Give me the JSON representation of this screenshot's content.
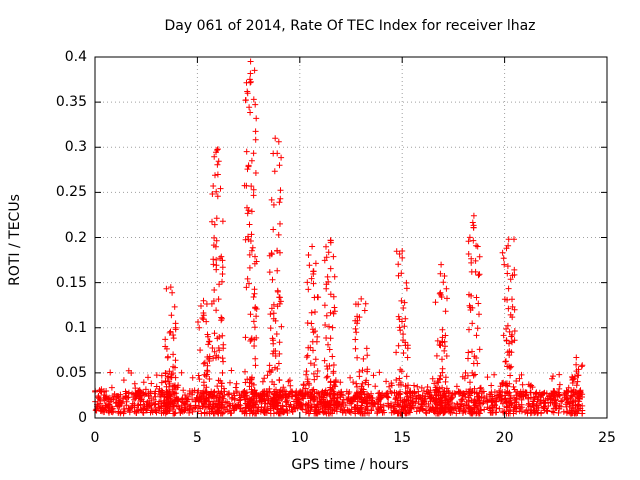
{
  "chart_data": {
    "type": "scatter",
    "title": "Day 061 of 2014, Rate Of TEC Index for receiver lhaz",
    "xlabel": "GPS time / hours",
    "ylabel": "ROTI / TECUs",
    "xlim": [
      0,
      25
    ],
    "ylim": [
      0,
      0.4
    ],
    "xticks": [
      "0",
      "5",
      "10",
      "15",
      "20",
      "25"
    ],
    "yticks": [
      "0",
      "0.05",
      "0.1",
      "0.15",
      "0.2",
      "0.25",
      "0.3",
      "0.35",
      "0.4"
    ],
    "grid": true,
    "marker": "+",
    "color": "#ff0000",
    "x_range_observed": [
      0,
      23.8
    ],
    "baseline_roti": [
      0.005,
      0.03
    ],
    "peaks": [
      {
        "x": 3.7,
        "y": 0.145
      },
      {
        "x": 5.3,
        "y": 0.13
      },
      {
        "x": 6.0,
        "y": 0.298
      },
      {
        "x": 7.6,
        "y": 0.395
      },
      {
        "x": 8.8,
        "y": 0.31
      },
      {
        "x": 10.6,
        "y": 0.19
      },
      {
        "x": 11.5,
        "y": 0.197
      },
      {
        "x": 13.0,
        "y": 0.132
      },
      {
        "x": 15.0,
        "y": 0.185
      },
      {
        "x": 16.9,
        "y": 0.17
      },
      {
        "x": 18.5,
        "y": 0.224
      },
      {
        "x": 20.2,
        "y": 0.198
      },
      {
        "x": 23.5,
        "y": 0.067
      }
    ]
  }
}
